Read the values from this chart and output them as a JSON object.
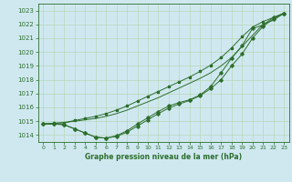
{
  "title": "Graphe pression niveau de la mer (hPa)",
  "bg_color": "#cfe8f0",
  "grid_color": "#b8d8b8",
  "line_color": "#2d6e2d",
  "xlim": [
    -0.5,
    23.5
  ],
  "ylim": [
    1013.5,
    1023.5
  ],
  "yticks": [
    1014,
    1015,
    1016,
    1017,
    1018,
    1019,
    1020,
    1021,
    1022,
    1023
  ],
  "xticks": [
    0,
    1,
    2,
    3,
    4,
    5,
    6,
    7,
    8,
    9,
    10,
    11,
    12,
    13,
    14,
    15,
    16,
    17,
    18,
    19,
    20,
    21,
    22,
    23
  ],
  "line_smooth": {
    "x": [
      0,
      1,
      2,
      3,
      4,
      5,
      6,
      7,
      8,
      9,
      10,
      11,
      12,
      13,
      14,
      15,
      16,
      17,
      18,
      19,
      20,
      21,
      22,
      23
    ],
    "y": [
      1014.8,
      1014.85,
      1014.9,
      1015.0,
      1015.1,
      1015.2,
      1015.35,
      1015.55,
      1015.8,
      1016.1,
      1016.4,
      1016.7,
      1017.05,
      1017.4,
      1017.75,
      1018.1,
      1018.5,
      1019.0,
      1019.6,
      1020.4,
      1021.2,
      1022.0,
      1022.3,
      1022.8
    ]
  },
  "line_upper": {
    "x": [
      0,
      1,
      2,
      3,
      4,
      5,
      6,
      7,
      8,
      9,
      10,
      11,
      12,
      13,
      14,
      15,
      16,
      17,
      18,
      19,
      20,
      21,
      22,
      23
    ],
    "y": [
      1014.8,
      1014.85,
      1014.9,
      1015.05,
      1015.2,
      1015.35,
      1015.55,
      1015.8,
      1016.1,
      1016.45,
      1016.8,
      1017.15,
      1017.5,
      1017.85,
      1018.2,
      1018.6,
      1019.05,
      1019.6,
      1020.3,
      1021.1,
      1021.8,
      1022.2,
      1022.5,
      1022.8
    ]
  },
  "line_lower": {
    "x": [
      0,
      1,
      2,
      3,
      4,
      5,
      6,
      7,
      8,
      9,
      10,
      11,
      12,
      13,
      14,
      15,
      16,
      17,
      18,
      19,
      20,
      21,
      22,
      23
    ],
    "y": [
      1014.8,
      1014.8,
      1014.75,
      1014.45,
      1014.15,
      1013.85,
      1013.78,
      1013.9,
      1014.2,
      1014.65,
      1015.1,
      1015.55,
      1015.95,
      1016.25,
      1016.5,
      1016.85,
      1017.35,
      1018.0,
      1019.0,
      1019.85,
      1021.0,
      1021.85,
      1022.4,
      1022.8
    ]
  },
  "line_mid": {
    "x": [
      0,
      1,
      2,
      3,
      4,
      5,
      6,
      7,
      8,
      9,
      10,
      11,
      12,
      13,
      14,
      15,
      16,
      17,
      18,
      19,
      20,
      21,
      22,
      23
    ],
    "y": [
      1014.8,
      1014.8,
      1014.75,
      1014.45,
      1014.15,
      1013.85,
      1013.78,
      1013.95,
      1014.3,
      1014.8,
      1015.25,
      1015.7,
      1016.1,
      1016.35,
      1016.55,
      1016.9,
      1017.5,
      1018.5,
      1019.55,
      1020.45,
      1021.7,
      1021.95,
      1022.5,
      1022.8
    ]
  }
}
